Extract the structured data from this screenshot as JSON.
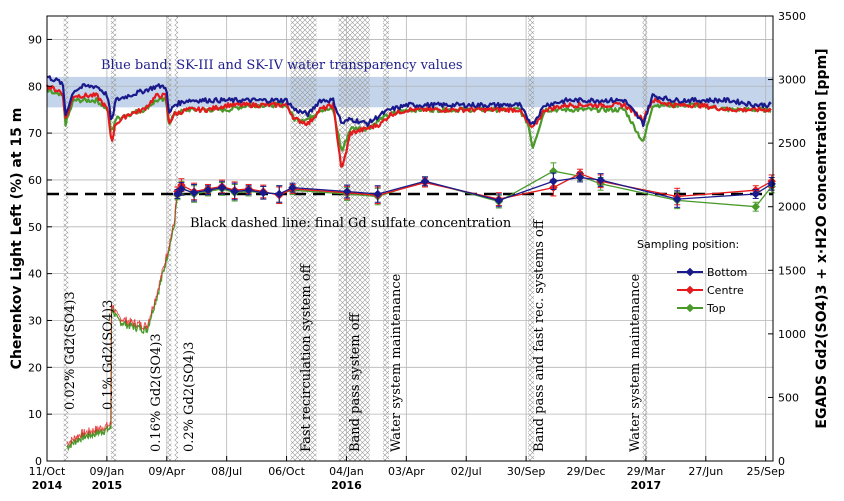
{
  "chart_data": {
    "type": "line",
    "ylabel": "Cherenkov Light Left (%) at 15 m",
    "y2label": "EGADS Gd2(SO4)3 + x·H2O concentration [ppm]",
    "ylim": [
      0,
      95
    ],
    "y2lim": [
      0,
      3500
    ],
    "yticks": [
      0,
      10,
      20,
      30,
      40,
      50,
      60,
      70,
      80,
      90
    ],
    "y2ticks": [
      0,
      500,
      1000,
      1500,
      2000,
      2500,
      3000,
      3500
    ],
    "xlim": [
      "2014-10-11",
      "2017-10-06"
    ],
    "x_tick_labels": [
      {
        "date": "2014-10-11",
        "label": "11/Oct"
      },
      {
        "date": "2015-01-09",
        "label": "09/Jan"
      },
      {
        "date": "2015-04-09",
        "label": "09/Apr"
      },
      {
        "date": "2015-07-08",
        "label": "08/Jul"
      },
      {
        "date": "2015-10-06",
        "label": "06/Oct"
      },
      {
        "date": "2016-01-04",
        "label": "04/Jan"
      },
      {
        "date": "2016-04-03",
        "label": "03/Apr"
      },
      {
        "date": "2016-07-02",
        "label": "02/Jul"
      },
      {
        "date": "2016-09-30",
        "label": "30/Sep"
      },
      {
        "date": "2016-12-29",
        "label": "29/Dec"
      },
      {
        "date": "2017-03-29",
        "label": "29/Mar"
      },
      {
        "date": "2017-06-27",
        "label": "27/Jun"
      },
      {
        "date": "2017-09-25",
        "label": "25/Sep"
      }
    ],
    "x_year_labels": [
      {
        "date": "2014-10-11",
        "label": "2014"
      },
      {
        "date": "2015-01-09",
        "label": "2015"
      },
      {
        "date": "2016-01-04",
        "label": "2016"
      },
      {
        "date": "2017-03-29",
        "label": "2017"
      }
    ],
    "blue_band": {
      "y": [
        75.5,
        82
      ],
      "label": "Blue band: SK-III and SK-IV water transparency values"
    },
    "dashed_line": {
      "y2": 2100,
      "label": "Black dashed line: final Gd sulfate concentration"
    },
    "hatched_periods": [
      {
        "start": "2014-11-05",
        "end": "2014-11-12",
        "label": "0.02% Gd2(SO4)3"
      },
      {
        "start": "2015-01-15",
        "end": "2015-01-23",
        "label": "0.1% Gd2(SO4)3"
      },
      {
        "start": "2015-04-10",
        "end": "2015-04-16",
        "label": "0.16% Gd2(SO4)3"
      },
      {
        "start": "2015-04-21",
        "end": "2015-04-26",
        "label": "0.2% Gd2(SO4)3"
      },
      {
        "start": "2015-10-12",
        "end": "2015-11-20",
        "label": "Fast recirculation  system off"
      },
      {
        "start": "2015-12-23",
        "end": "2016-02-08",
        "label": "Band pass system off"
      },
      {
        "start": "2016-02-28",
        "end": "2016-03-08",
        "label": "Water system maintenance"
      },
      {
        "start": "2016-10-03",
        "end": "2016-10-12",
        "label": "Band pass and fast rec. systems off"
      },
      {
        "start": "2017-03-24",
        "end": "2017-03-31",
        "label": "Water system maintenance"
      }
    ],
    "series": [
      {
        "name": "Bottom",
        "color": "#1a1a8c",
        "clp": [
          [
            "2014-10-11",
            82
          ],
          [
            "2014-10-30",
            81
          ],
          [
            "2014-11-04",
            80
          ],
          [
            "2014-11-08",
            74
          ],
          [
            "2014-11-20",
            79
          ],
          [
            "2014-12-05",
            80
          ],
          [
            "2014-12-25",
            80
          ],
          [
            "2015-01-10",
            78
          ],
          [
            "2015-01-16",
            72
          ],
          [
            "2015-01-22",
            77
          ],
          [
            "2015-02-10",
            78
          ],
          [
            "2015-03-05",
            79
          ],
          [
            "2015-03-25",
            80
          ],
          [
            "2015-04-08",
            80
          ],
          [
            "2015-04-12",
            74
          ],
          [
            "2015-04-20",
            76
          ],
          [
            "2015-05-10",
            77
          ],
          [
            "2015-06-10",
            77
          ],
          [
            "2015-07-10",
            77
          ],
          [
            "2015-08-10",
            77
          ],
          [
            "2015-09-10",
            77
          ],
          [
            "2015-10-06",
            77
          ],
          [
            "2015-10-18",
            75
          ],
          [
            "2015-11-08",
            74
          ],
          [
            "2015-11-25",
            77
          ],
          [
            "2015-12-15",
            77
          ],
          [
            "2015-12-28",
            72
          ],
          [
            "2016-01-10",
            73
          ],
          [
            "2016-02-05",
            72
          ],
          [
            "2016-02-25",
            74
          ],
          [
            "2016-03-10",
            75
          ],
          [
            "2016-04-05",
            76
          ],
          [
            "2016-06-01",
            76
          ],
          [
            "2016-08-01",
            76
          ],
          [
            "2016-09-20",
            76
          ],
          [
            "2016-10-03",
            73
          ],
          [
            "2016-10-10",
            72
          ],
          [
            "2016-10-28",
            76
          ],
          [
            "2016-12-01",
            77
          ],
          [
            "2017-01-15",
            77
          ],
          [
            "2017-02-25",
            77
          ],
          [
            "2017-03-25",
            72
          ],
          [
            "2017-04-08",
            78
          ],
          [
            "2017-05-10",
            77
          ],
          [
            "2017-06-15",
            77
          ],
          [
            "2017-08-01",
            77
          ],
          [
            "2017-09-10",
            76
          ],
          [
            "2017-10-04",
            76
          ]
        ],
        "conc": [
          [
            "2015-04-25",
            2100
          ],
          [
            "2015-05-01",
            2140
          ],
          [
            "2015-05-20",
            2110
          ],
          [
            "2015-06-10",
            2130
          ],
          [
            "2015-07-01",
            2150
          ],
          [
            "2015-07-20",
            2120
          ],
          [
            "2015-08-10",
            2130
          ],
          [
            "2015-09-01",
            2110
          ],
          [
            "2015-09-25",
            2100
          ],
          [
            "2015-10-15",
            2150
          ],
          [
            "2016-01-05",
            2120
          ],
          [
            "2016-02-20",
            2100
          ],
          [
            "2016-05-01",
            2200
          ],
          [
            "2016-08-20",
            2050
          ],
          [
            "2016-11-10",
            2200
          ],
          [
            "2016-12-20",
            2230
          ],
          [
            "2017-01-20",
            2210
          ],
          [
            "2017-05-15",
            2060
          ],
          [
            "2017-09-10",
            2100
          ],
          [
            "2017-10-04",
            2180
          ]
        ]
      },
      {
        "name": "Centre",
        "color": "#e41a1c",
        "clp": [
          [
            "2014-10-11",
            80
          ],
          [
            "2014-10-30",
            79
          ],
          [
            "2014-11-04",
            78
          ],
          [
            "2014-11-08",
            73
          ],
          [
            "2014-11-20",
            78
          ],
          [
            "2014-12-05",
            78
          ],
          [
            "2014-12-25",
            78
          ],
          [
            "2015-01-10",
            75
          ],
          [
            "2015-01-16",
            68
          ],
          [
            "2015-01-22",
            72
          ],
          [
            "2015-02-10",
            74
          ],
          [
            "2015-03-05",
            75
          ],
          [
            "2015-03-25",
            78
          ],
          [
            "2015-04-08",
            78
          ],
          [
            "2015-04-12",
            72
          ],
          [
            "2015-04-20",
            74
          ],
          [
            "2015-05-10",
            75
          ],
          [
            "2015-06-10",
            75
          ],
          [
            "2015-07-10",
            76
          ],
          [
            "2015-08-10",
            76
          ],
          [
            "2015-09-10",
            76
          ],
          [
            "2015-10-06",
            76
          ],
          [
            "2015-10-18",
            73
          ],
          [
            "2015-11-08",
            72
          ],
          [
            "2015-11-25",
            75
          ],
          [
            "2015-12-15",
            76
          ],
          [
            "2015-12-28",
            62
          ],
          [
            "2016-01-10",
            70
          ],
          [
            "2016-02-05",
            71
          ],
          [
            "2016-02-25",
            72
          ],
          [
            "2016-03-10",
            74
          ],
          [
            "2016-04-05",
            75
          ],
          [
            "2016-06-01",
            75
          ],
          [
            "2016-08-01",
            75
          ],
          [
            "2016-09-20",
            75
          ],
          [
            "2016-10-03",
            72
          ],
          [
            "2016-10-10",
            71
          ],
          [
            "2016-10-28",
            75
          ],
          [
            "2016-12-01",
            76
          ],
          [
            "2017-01-15",
            76
          ],
          [
            "2017-02-25",
            76
          ],
          [
            "2017-03-25",
            73
          ],
          [
            "2017-04-08",
            77
          ],
          [
            "2017-05-10",
            76
          ],
          [
            "2017-06-15",
            76
          ],
          [
            "2017-08-01",
            75
          ],
          [
            "2017-09-10",
            75
          ],
          [
            "2017-10-04",
            75
          ]
        ],
        "conc": [
          [
            "2015-04-25",
            2120
          ],
          [
            "2015-05-01",
            2170
          ],
          [
            "2015-05-20",
            2120
          ],
          [
            "2015-06-10",
            2140
          ],
          [
            "2015-07-01",
            2160
          ],
          [
            "2015-07-20",
            2130
          ],
          [
            "2015-08-10",
            2140
          ],
          [
            "2015-09-01",
            2120
          ],
          [
            "2015-09-25",
            2090
          ],
          [
            "2015-10-15",
            2140
          ],
          [
            "2016-01-05",
            2110
          ],
          [
            "2016-02-20",
            2090
          ],
          [
            "2016-05-01",
            2190
          ],
          [
            "2016-08-20",
            2060
          ],
          [
            "2016-11-10",
            2150
          ],
          [
            "2016-12-20",
            2260
          ],
          [
            "2017-01-20",
            2200
          ],
          [
            "2017-05-15",
            2080
          ],
          [
            "2017-09-10",
            2130
          ],
          [
            "2017-10-04",
            2200
          ]
        ]
      },
      {
        "name": "Top",
        "color": "#4a9a2a",
        "clp": [
          [
            "2014-10-11",
            79
          ],
          [
            "2014-10-30",
            78
          ],
          [
            "2014-11-04",
            78
          ],
          [
            "2014-11-08",
            72
          ],
          [
            "2014-11-20",
            77
          ],
          [
            "2014-12-05",
            77
          ],
          [
            "2014-12-25",
            77
          ],
          [
            "2015-01-10",
            75
          ],
          [
            "2015-01-16",
            70
          ],
          [
            "2015-01-22",
            73
          ],
          [
            "2015-02-10",
            74
          ],
          [
            "2015-03-05",
            75
          ],
          [
            "2015-03-25",
            77
          ],
          [
            "2015-04-08",
            77
          ],
          [
            "2015-04-12",
            72
          ],
          [
            "2015-04-20",
            74
          ],
          [
            "2015-05-10",
            75
          ],
          [
            "2015-06-10",
            75
          ],
          [
            "2015-07-10",
            75
          ],
          [
            "2015-08-10",
            76
          ],
          [
            "2015-09-10",
            76
          ],
          [
            "2015-10-06",
            76
          ],
          [
            "2015-10-18",
            73
          ],
          [
            "2015-11-08",
            73
          ],
          [
            "2015-11-25",
            75
          ],
          [
            "2015-12-15",
            75
          ],
          [
            "2015-12-28",
            66
          ],
          [
            "2016-01-10",
            71
          ],
          [
            "2016-02-05",
            71
          ],
          [
            "2016-02-25",
            73
          ],
          [
            "2016-03-10",
            74
          ],
          [
            "2016-04-05",
            75
          ],
          [
            "2016-06-01",
            75
          ],
          [
            "2016-08-01",
            75
          ],
          [
            "2016-09-20",
            75
          ],
          [
            "2016-10-03",
            72
          ],
          [
            "2016-10-10",
            67
          ],
          [
            "2016-10-28",
            75
          ],
          [
            "2016-12-01",
            75
          ],
          [
            "2017-01-15",
            75
          ],
          [
            "2017-02-25",
            75
          ],
          [
            "2017-03-25",
            68
          ],
          [
            "2017-04-08",
            76
          ],
          [
            "2017-05-10",
            76
          ],
          [
            "2017-06-15",
            76
          ],
          [
            "2017-08-01",
            75
          ],
          [
            "2017-09-10",
            75
          ],
          [
            "2017-10-04",
            75
          ]
        ],
        "conc": [
          [
            "2015-04-25",
            2090
          ],
          [
            "2015-05-01",
            2150
          ],
          [
            "2015-05-20",
            2100
          ],
          [
            "2015-06-10",
            2120
          ],
          [
            "2015-07-01",
            2140
          ],
          [
            "2015-07-20",
            2110
          ],
          [
            "2015-08-10",
            2120
          ],
          [
            "2015-09-01",
            2110
          ],
          [
            "2015-09-25",
            2100
          ],
          [
            "2015-10-15",
            2130
          ],
          [
            "2016-01-05",
            2100
          ],
          [
            "2016-02-20",
            2080
          ],
          [
            "2016-05-01",
            2200
          ],
          [
            "2016-08-20",
            2040
          ],
          [
            "2016-11-10",
            2280
          ],
          [
            "2016-12-20",
            2240
          ],
          [
            "2017-01-20",
            2180
          ],
          [
            "2017-05-15",
            2050
          ],
          [
            "2017-09-10",
            2000
          ],
          [
            "2017-10-04",
            2160
          ]
        ]
      }
    ],
    "clp_ramp": [
      [
        "2014-11-10",
        3
      ],
      [
        "2014-12-01",
        5
      ],
      [
        "2014-12-25",
        6
      ],
      [
        "2015-01-15",
        7
      ],
      [
        "2015-01-16",
        33
      ],
      [
        "2015-01-25",
        30
      ],
      [
        "2015-02-10",
        29
      ],
      [
        "2015-03-10",
        28
      ],
      [
        "2015-03-25",
        35
      ],
      [
        "2015-04-05",
        41
      ],
      [
        "2015-04-10",
        44
      ],
      [
        "2015-04-20",
        50
      ],
      [
        "2015-04-25",
        57
      ]
    ],
    "legend": {
      "title": "Sampling position:",
      "position": "right"
    },
    "grid": true
  }
}
